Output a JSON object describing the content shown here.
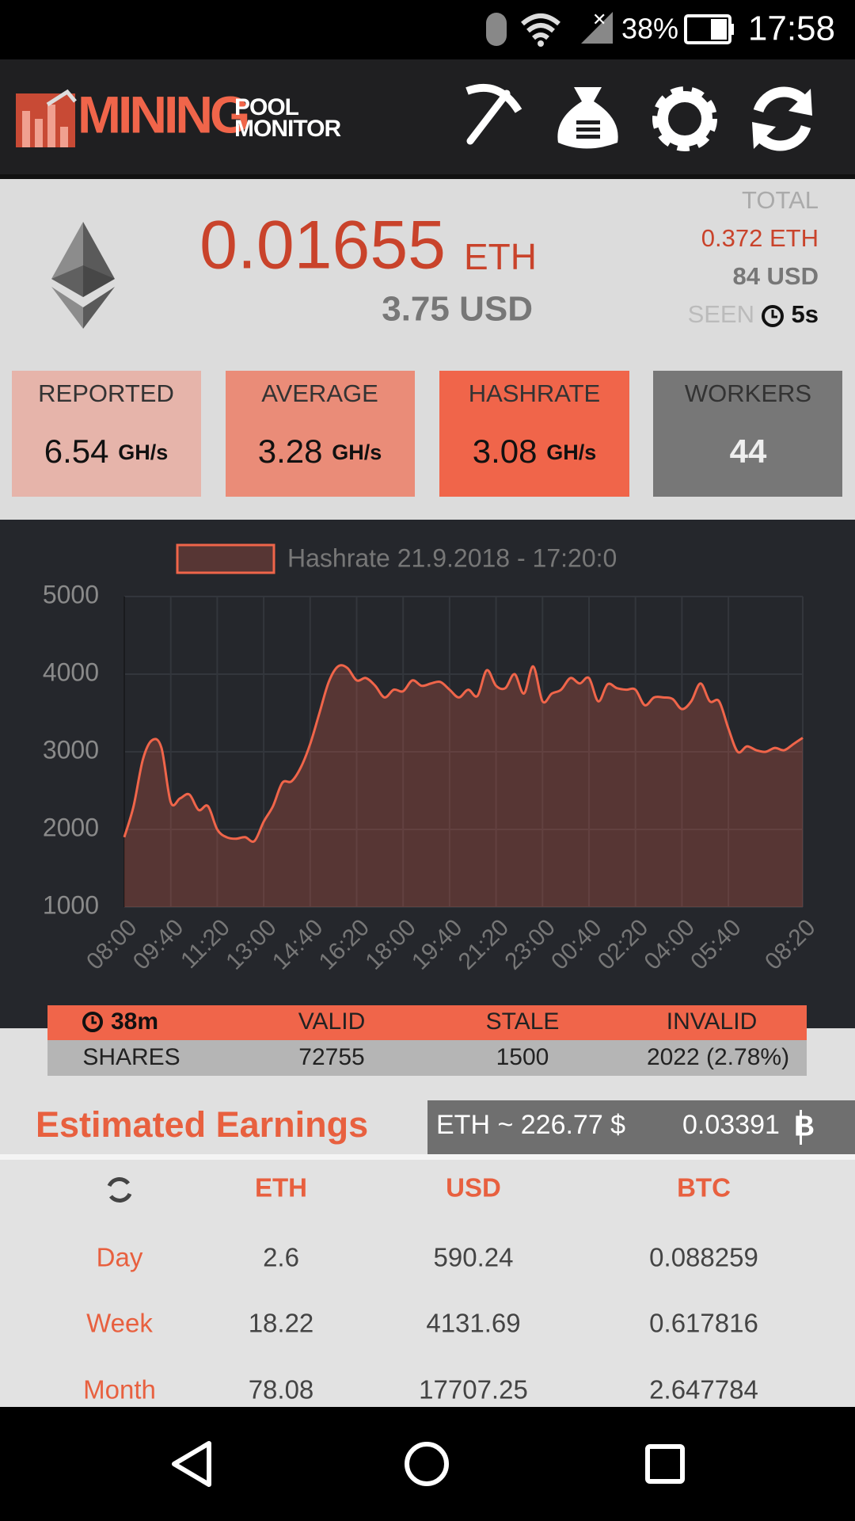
{
  "status_bar": {
    "battery": "38%",
    "time": "17:58"
  },
  "header": {
    "logo_main": "MINING",
    "logo_top": "POOL",
    "logo_bottom": "MONITOR"
  },
  "summary": {
    "balance": "0.01655",
    "balance_unit": "ETH",
    "balance_usd": "3.75 USD",
    "total_label": "TOTAL",
    "total_eth": "0.372 ETH",
    "total_usd": "84 USD",
    "seen_label": "SEEN",
    "seen_value": "5s"
  },
  "cards": [
    {
      "label": "REPORTED",
      "value": "6.54",
      "unit": "GH/s"
    },
    {
      "label": "AVERAGE",
      "value": "3.28",
      "unit": "GH/s"
    },
    {
      "label": "HASHRATE",
      "value": "3.08",
      "unit": "GH/s"
    },
    {
      "label": "WORKERS",
      "value": "44"
    }
  ],
  "chart_data": {
    "type": "line",
    "categories": [
      "08:00",
      null,
      null,
      null,
      null,
      "09:40",
      null,
      null,
      null,
      null,
      "11:20",
      null,
      null,
      null,
      null,
      "13:00",
      null,
      null,
      null,
      null,
      "14:40",
      null,
      null,
      null,
      null,
      "16:20",
      null,
      null,
      null,
      null,
      "18:00",
      null,
      null,
      null,
      null,
      "19:40",
      null,
      null,
      null,
      null,
      "21:20",
      null,
      null,
      null,
      null,
      "23:00",
      null,
      null,
      null,
      null,
      "00:40",
      null,
      null,
      null,
      null,
      "02:20",
      null,
      null,
      null,
      null,
      "04:00",
      null,
      null,
      null,
      null,
      "05:40",
      null,
      null,
      null,
      null,
      null,
      null,
      null,
      "08:20"
    ],
    "series": [
      {
        "name": "Hashrate 21.9.2018 - 17:20:0",
        "color": "#f0654a",
        "values": [
          1900,
          2300,
          2900,
          3150,
          3050,
          2350,
          2400,
          2450,
          2250,
          2300,
          2000,
          1900,
          1880,
          1900,
          1850,
          2100,
          2300,
          2600,
          2620,
          2800,
          3100,
          3500,
          3900,
          4100,
          4080,
          3920,
          3950,
          3850,
          3700,
          3800,
          3780,
          3920,
          3850,
          3880,
          3900,
          3800,
          3700,
          3800,
          3720,
          4050,
          3850,
          3820,
          4000,
          3750,
          4100,
          3650,
          3750,
          3800,
          3950,
          3880,
          3950,
          3650,
          3870,
          3820,
          3800,
          3800,
          3600,
          3700,
          3700,
          3680,
          3550,
          3650,
          3880,
          3650,
          3650,
          3300,
          3000,
          3070,
          3020,
          3000,
          3050,
          3020,
          3100,
          3180
        ]
      }
    ],
    "ylim": [
      1000,
      5000
    ],
    "yticks": [
      1000,
      2000,
      3000,
      4000,
      5000
    ],
    "grid": true
  },
  "shares": {
    "time": "38m",
    "headers": [
      "VALID",
      "STALE",
      "INVALID"
    ],
    "row_label": "SHARES",
    "values": [
      "72755",
      "1500",
      "2022 (2.78%)"
    ]
  },
  "earnings": {
    "title": "Estimated Earnings",
    "eth_price": "ETH ~ 226.77 $",
    "btc_price": "0.03391",
    "columns": [
      "ETH",
      "USD",
      "BTC"
    ],
    "rows": [
      [
        "Day",
        "2.6",
        "590.24",
        "0.088259"
      ],
      [
        "Week",
        "18.22",
        "4131.69",
        "0.617816"
      ],
      [
        "Month",
        "78.08",
        "17707.25",
        "2.647784"
      ]
    ]
  }
}
